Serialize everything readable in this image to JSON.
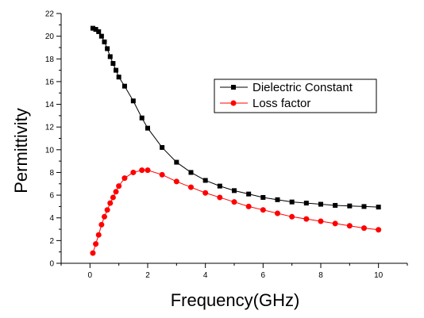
{
  "chart_data": {
    "type": "line",
    "title": "",
    "xlabel": "Frequency(GHz)",
    "ylabel": "Permittivity",
    "xlim": [
      -1,
      11
    ],
    "ylim": [
      0,
      22
    ],
    "x_ticks": [
      0,
      2,
      4,
      6,
      8,
      10
    ],
    "y_ticks": [
      0,
      2,
      4,
      6,
      8,
      10,
      12,
      14,
      16,
      18,
      20,
      22
    ],
    "grid": false,
    "legend_position": "top-right",
    "series": [
      {
        "name": "Dielectric Constant",
        "color": "#000000",
        "marker": "square",
        "x": [
          0.1,
          0.2,
          0.3,
          0.4,
          0.5,
          0.6,
          0.7,
          0.8,
          0.9,
          1.0,
          1.2,
          1.5,
          1.8,
          2.0,
          2.5,
          3.0,
          3.5,
          4.0,
          4.5,
          5.0,
          5.5,
          6.0,
          6.5,
          7.0,
          7.5,
          8.0,
          8.5,
          9.0,
          9.5,
          10.0
        ],
        "y": [
          20.7,
          20.6,
          20.4,
          20.0,
          19.5,
          18.9,
          18.2,
          17.6,
          17.0,
          16.4,
          15.6,
          14.3,
          12.8,
          11.9,
          10.2,
          8.9,
          8.0,
          7.3,
          6.8,
          6.4,
          6.1,
          5.8,
          5.6,
          5.4,
          5.3,
          5.2,
          5.1,
          5.05,
          5.0,
          4.95
        ]
      },
      {
        "name": "Loss factor",
        "color": "#ff0000",
        "marker": "circle",
        "x": [
          0.1,
          0.2,
          0.3,
          0.4,
          0.5,
          0.6,
          0.7,
          0.8,
          0.9,
          1.0,
          1.2,
          1.5,
          1.8,
          2.0,
          2.5,
          3.0,
          3.5,
          4.0,
          4.5,
          5.0,
          5.5,
          6.0,
          6.5,
          7.0,
          7.5,
          8.0,
          8.5,
          9.0,
          9.5,
          10.0
        ],
        "y": [
          0.9,
          1.7,
          2.5,
          3.4,
          4.1,
          4.7,
          5.3,
          5.8,
          6.3,
          6.8,
          7.5,
          8.0,
          8.2,
          8.2,
          7.8,
          7.2,
          6.7,
          6.2,
          5.8,
          5.4,
          5.0,
          4.7,
          4.4,
          4.1,
          3.9,
          3.7,
          3.5,
          3.3,
          3.1,
          2.95
        ]
      }
    ]
  }
}
